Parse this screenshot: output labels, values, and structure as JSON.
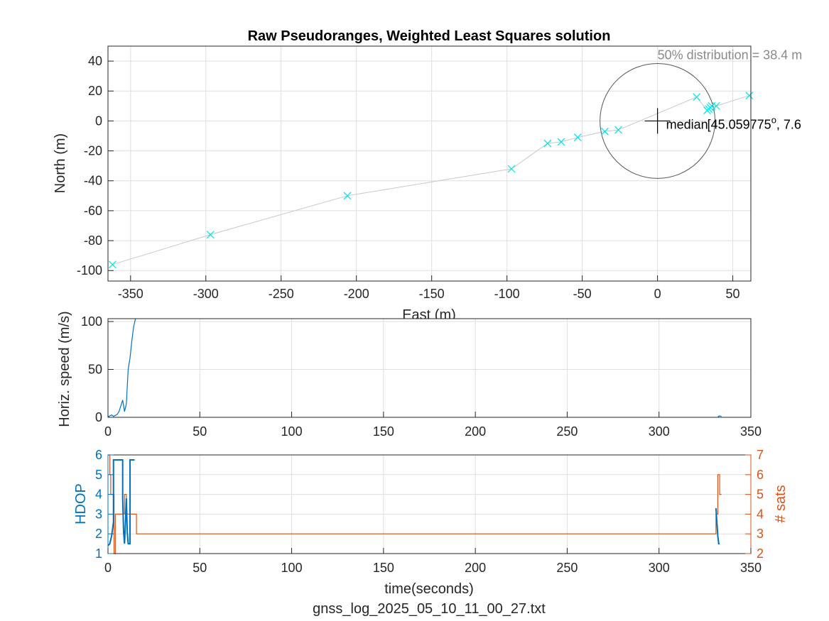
{
  "chart_data": [
    {
      "type": "scatter",
      "title": "Raw Pseudoranges, Weighted Least Squares solution",
      "xlabel": "East (m)",
      "ylabel": "North (m)",
      "xlim": [
        -365,
        62
      ],
      "ylim": [
        -107,
        50
      ],
      "xticks": [
        -350,
        -300,
        -250,
        -200,
        -150,
        -100,
        -50,
        0,
        50
      ],
      "yticks": [
        -100,
        -80,
        -60,
        -40,
        -20,
        0,
        20,
        40
      ],
      "grid": true,
      "colors": {
        "points": "#00e5e5",
        "track": "#c8c8c8",
        "circle": "#555555",
        "median": "#000000"
      },
      "points": [
        [
          -362,
          -96
        ],
        [
          -297,
          -76
        ],
        [
          -206,
          -50
        ],
        [
          -97,
          -32
        ],
        [
          -73,
          -15
        ],
        [
          -64,
          -14
        ],
        [
          -53,
          -11
        ],
        [
          -35,
          -7
        ],
        [
          -26,
          -6
        ],
        [
          26,
          16
        ],
        [
          33,
          7
        ],
        [
          34,
          8
        ],
        [
          35,
          9
        ],
        [
          36,
          10
        ],
        [
          39,
          10
        ],
        [
          61,
          17
        ]
      ],
      "circle": {
        "center": [
          0,
          0
        ],
        "radius": 38.4
      },
      "distribution_label": "50% distribution = 38.4 m",
      "median_label": "median",
      "median_coords": "[45.059775",
      "median_coords_sup": "o",
      "median_coords_tail": ", 7.6"
    },
    {
      "type": "line",
      "xlabel": "",
      "ylabel": "Horiz. speed (m/s)",
      "xlim": [
        0,
        350
      ],
      "ylim": [
        0,
        103
      ],
      "xticks": [
        0,
        50,
        100,
        150,
        200,
        250,
        300,
        350
      ],
      "yticks": [
        0,
        50,
        100
      ],
      "grid": true,
      "color": "#0072bd",
      "series": [
        {
          "x": [
            0,
            1,
            2,
            3,
            4,
            5,
            6,
            7,
            8,
            9,
            10,
            11,
            12,
            13,
            14,
            15
          ],
          "y": [
            0.5,
            1.5,
            2.5,
            1,
            2,
            3,
            6,
            12,
            18,
            6,
            14,
            50,
            62,
            80,
            95,
            103
          ]
        },
        {
          "x": [
            332,
            333,
            334
          ],
          "y": [
            0.5,
            1.5,
            1
          ]
        }
      ]
    },
    {
      "type": "line",
      "xlabel": "time(seconds)",
      "ylabel": "HDOP",
      "ylabel_right": "# sats",
      "xlim": [
        0,
        350
      ],
      "ylim": [
        1,
        6
      ],
      "ylim_right": [
        2,
        7
      ],
      "xticks": [
        0,
        50,
        100,
        150,
        200,
        250,
        300,
        350
      ],
      "yticks": [
        1,
        2,
        3,
        4,
        5,
        6
      ],
      "yticks_right": [
        2,
        3,
        4,
        5,
        6,
        7
      ],
      "grid": true,
      "series": [
        {
          "axis": "left",
          "color": "#0072bd",
          "x": [
            0,
            1,
            2,
            3,
            3,
            6,
            6,
            8,
            8,
            8.5,
            9,
            9.5,
            10,
            10.5,
            11,
            12,
            12,
            13.8,
            13.8,
            14.5
          ],
          "y": [
            1.4,
            1.5,
            1.9,
            2.6,
            5.75,
            5.75,
            5.75,
            5.75,
            3.8,
            2.1,
            1.5,
            2.6,
            3.8,
            2.1,
            1.5,
            1.5,
            5.75,
            5.75,
            5.75,
            5.75
          ]
        },
        {
          "axis": "left",
          "color": "#0072bd",
          "x": [
            331,
            331.5,
            332,
            332.5,
            333
          ],
          "y": [
            3.3,
            2.6,
            1.9,
            1.5,
            1.5
          ]
        },
        {
          "axis": "right",
          "color": "#d95319",
          "x": [
            0,
            1,
            1,
            1.5,
            1.5,
            3.3,
            3.3,
            4,
            4,
            9,
            9,
            10,
            10,
            15.5,
            15.5,
            331,
            331,
            332,
            332,
            333,
            333,
            334
          ],
          "y": [
            7,
            7,
            6,
            6,
            5,
            5,
            2,
            2,
            4,
            4,
            5,
            5,
            4,
            4,
            3,
            3,
            4,
            4,
            6,
            6,
            5,
            5
          ]
        }
      ],
      "footer": "gnss_log_2025_05_10_11_00_27.txt"
    }
  ]
}
